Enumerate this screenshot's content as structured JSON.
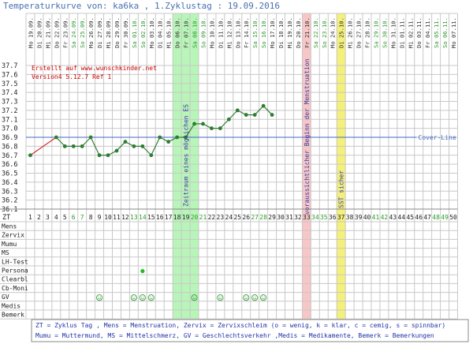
{
  "header": {
    "title": "Temperaturkurve von: ka6ka , 1.Zyklustag : 19.09.2016"
  },
  "credits": {
    "line1": "Erstellt auf www.wunschkinder.net",
    "line2": "Version4 5.12.7 Ref 1"
  },
  "colors": {
    "title": "#4a6fb0",
    "grid": "#c8c8c8",
    "temp_line": "#2e7d32",
    "temp_start_line": "#d32f2f",
    "cover_line": "#4466cc",
    "fertile_band": "#b8f5b8",
    "menstruation_band": "#f7c6c6",
    "sst_band": "#f4f07a",
    "weekend_date": "#2e9b2e",
    "weekday_date": "#333333",
    "credits": "#cc0000",
    "annotation": "#3a3aa0"
  },
  "chart_data": {
    "type": "line",
    "title": "Temperaturkurve von: ka6ka , 1.Zyklustag : 19.09.2016",
    "ylim": [
      36.1,
      37.7
    ],
    "yticks": [
      "37.7",
      "37.6",
      "37.5",
      "37.4",
      "37.3",
      "37.2",
      "37.1",
      "37.0",
      "36.9",
      "36.8",
      "36.7",
      "36.6",
      "36.5",
      "36.4",
      "36.3",
      "36.2",
      "36.1"
    ],
    "cover_line": {
      "value": 36.9,
      "label": "Cover-Line"
    },
    "dates": [
      {
        "label": "Mo 19.09.",
        "weekend": false
      },
      {
        "label": "Di 20.09.",
        "weekend": false
      },
      {
        "label": "Mi 21.09.",
        "weekend": false
      },
      {
        "label": "Do 22.09.",
        "weekend": false
      },
      {
        "label": "Fr 23.09.",
        "weekend": false
      },
      {
        "label": "Sa 24.09.",
        "weekend": true
      },
      {
        "label": "So 25.09.",
        "weekend": true
      },
      {
        "label": "Mo 26.09.",
        "weekend": false
      },
      {
        "label": "Di 27.09.",
        "weekend": false
      },
      {
        "label": "Mi 28.09.",
        "weekend": false
      },
      {
        "label": "Do 29.09.",
        "weekend": false
      },
      {
        "label": "Fr 30.09.",
        "weekend": false
      },
      {
        "label": "Sa 01.10.",
        "weekend": true
      },
      {
        "label": "So 02.10.",
        "weekend": true
      },
      {
        "label": "Mo 03.10.",
        "weekend": false
      },
      {
        "label": "Di 04.10.",
        "weekend": false
      },
      {
        "label": "Mi 05.10.",
        "weekend": false
      },
      {
        "label": "Do 06.10.",
        "weekend": false
      },
      {
        "label": "Fr 07.10.",
        "weekend": false
      },
      {
        "label": "Sa 08.10.",
        "weekend": true
      },
      {
        "label": "So 09.10.",
        "weekend": true
      },
      {
        "label": "Mo 10.10.",
        "weekend": false
      },
      {
        "label": "Di 11.10.",
        "weekend": false
      },
      {
        "label": "Mi 12.10.",
        "weekend": false
      },
      {
        "label": "Do 13.10.",
        "weekend": false
      },
      {
        "label": "Fr 14.10.",
        "weekend": false
      },
      {
        "label": "Sa 15.10.",
        "weekend": true
      },
      {
        "label": "So 16.10.",
        "weekend": true
      },
      {
        "label": "Mo 17.10.",
        "weekend": false
      },
      {
        "label": "Di 18.10.",
        "weekend": false
      },
      {
        "label": "Mi 19.10.",
        "weekend": false
      },
      {
        "label": "Do 20.10.",
        "weekend": false
      },
      {
        "label": "Fr 21.10.",
        "weekend": false
      },
      {
        "label": "Sa 22.10.",
        "weekend": true
      },
      {
        "label": "So 23.10.",
        "weekend": true
      },
      {
        "label": "Mo 24.10.",
        "weekend": false
      },
      {
        "label": "Di 25.10.",
        "weekend": false
      },
      {
        "label": "Mi 26.10.",
        "weekend": false
      },
      {
        "label": "Do 27.10.",
        "weekend": false
      },
      {
        "label": "Fr 28.10.",
        "weekend": false
      },
      {
        "label": "Sa 29.10.",
        "weekend": true
      },
      {
        "label": "So 30.10.",
        "weekend": true
      },
      {
        "label": "Mo 31.10.",
        "weekend": false
      },
      {
        "label": "Di 01.11.",
        "weekend": false
      },
      {
        "label": "Mi 02.11.",
        "weekend": false
      },
      {
        "label": "Do 03.11.",
        "weekend": false
      },
      {
        "label": "Fr 04.11.",
        "weekend": false
      },
      {
        "label": "Sa 05.11.",
        "weekend": true
      },
      {
        "label": "So 06.11.",
        "weekend": true
      },
      {
        "label": "Mo 07.11.",
        "weekend": false
      }
    ],
    "temperatures": [
      {
        "day": 1,
        "value": 36.7
      },
      {
        "day": 4,
        "value": 36.9
      },
      {
        "day": 5,
        "value": 36.8
      },
      {
        "day": 6,
        "value": 36.8
      },
      {
        "day": 7,
        "value": 36.8
      },
      {
        "day": 8,
        "value": 36.9
      },
      {
        "day": 9,
        "value": 36.7
      },
      {
        "day": 10,
        "value": 36.7
      },
      {
        "day": 11,
        "value": 36.75
      },
      {
        "day": 12,
        "value": 36.85
      },
      {
        "day": 13,
        "value": 36.8
      },
      {
        "day": 14,
        "value": 36.8
      },
      {
        "day": 15,
        "value": 36.7
      },
      {
        "day": 16,
        "value": 36.9
      },
      {
        "day": 17,
        "value": 36.85
      },
      {
        "day": 18,
        "value": 36.9
      },
      {
        "day": 19,
        "value": 36.9
      },
      {
        "day": 20,
        "value": 37.05
      },
      {
        "day": 21,
        "value": 37.05
      },
      {
        "day": 22,
        "value": 37.0
      },
      {
        "day": 23,
        "value": 37.0
      },
      {
        "day": 24,
        "value": 37.1
      },
      {
        "day": 25,
        "value": 37.2
      },
      {
        "day": 26,
        "value": 37.15
      },
      {
        "day": 27,
        "value": 37.15
      },
      {
        "day": 28,
        "value": 37.25
      },
      {
        "day": 29,
        "value": 37.15
      }
    ],
    "bands": [
      {
        "from": 18,
        "to": 20,
        "kind": "fertile",
        "label": "Zeitraum eines möglichen ES"
      },
      {
        "from": 33,
        "to": 33,
        "kind": "menstruation",
        "label": "voraussichtlicher Beginn der Menstruation"
      },
      {
        "from": 37,
        "to": 37,
        "kind": "sst",
        "label": "SST sicher"
      }
    ],
    "zt_label": "ZT",
    "row_labels": [
      "Mens",
      "Zervix",
      "Mumu",
      "MS",
      "LH-Test",
      "Persona",
      "Clearbl",
      "Cb-Moni",
      "GV",
      "Medis",
      "Bemerk"
    ],
    "persona_days": [
      14
    ],
    "gv_days": [
      9,
      13,
      14,
      15,
      20,
      23,
      26,
      27,
      28
    ]
  },
  "legend": {
    "line1": "ZT = Zyklus Tag , Mens = Menstruation, Zervix = Zervixschleim (o = wenig, k = klar, c = cemig, s = spinnbar)",
    "line2": "Mumu = Muttermund, MS = Mittelschmerz, GV = Geschlechtsverkehr ,Medis = Medikamente, Bemerk = Bemerkungen"
  }
}
